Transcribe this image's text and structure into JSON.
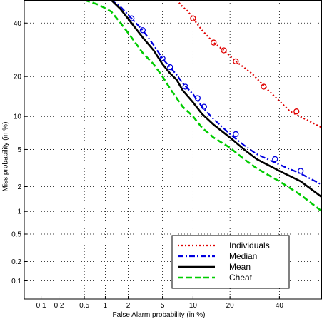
{
  "chart_data": {
    "type": "line",
    "xlabel": "False Alarm probability (in %)",
    "ylabel": "Miss probability (in %)",
    "xscale": "probit",
    "yscale": "probit",
    "xlim": [
      0.05,
      60
    ],
    "ylim": [
      0.05,
      50
    ],
    "xticks": [
      0.1,
      0.2,
      0.5,
      1,
      2,
      5,
      10,
      20,
      40
    ],
    "yticks": [
      0.1,
      0.2,
      0.5,
      1,
      2,
      5,
      10,
      20,
      40
    ],
    "xtick_labels": [
      "0.1",
      "0.2",
      "0.5",
      "1",
      "2",
      "5",
      "10",
      "20",
      "40"
    ],
    "ytick_labels": [
      "0.1",
      "0.2",
      "0.5",
      "1",
      "2",
      "5",
      "10",
      "20",
      "40"
    ],
    "grid": true,
    "legend_position": "bottom-right",
    "series": [
      {
        "name": "Individuals",
        "color": "#e00000",
        "style": "dotted",
        "marker": "circle",
        "x": [
          7,
          8,
          9,
          10,
          12,
          15,
          18,
          22,
          28,
          35,
          45,
          60
        ],
        "y": [
          50,
          47,
          45,
          42,
          37,
          32,
          29,
          25,
          21,
          16,
          11,
          8
        ],
        "marker_x": [
          10,
          15,
          18,
          22,
          33,
          48
        ],
        "marker_y": [
          42,
          32,
          29,
          25,
          17,
          11
        ]
      },
      {
        "name": "Median",
        "color": "#0000e0",
        "style": "dashdot",
        "marker": "circle",
        "x": [
          1.2,
          1.6,
          2.2,
          3,
          4,
          5,
          6,
          7,
          8,
          10,
          12,
          15,
          20,
          25,
          30,
          40,
          50,
          60
        ],
        "y": [
          50,
          47,
          42,
          37,
          31,
          26,
          23,
          20.5,
          18,
          15,
          12,
          9.5,
          7,
          5.5,
          4.5,
          3.5,
          2.8,
          2.1
        ],
        "marker_x": [
          2.2,
          3,
          5,
          6,
          8.5,
          11,
          12.5,
          22,
          38,
          50
        ],
        "marker_y": [
          42,
          37,
          26,
          23,
          17,
          14,
          12,
          7,
          4,
          3
        ]
      },
      {
        "name": "Mean",
        "color": "#000000",
        "style": "solid",
        "marker": "none",
        "x": [
          1.2,
          1.6,
          2.2,
          3,
          4,
          5,
          6,
          7,
          8,
          10,
          12,
          15,
          20,
          25,
          30,
          40,
          50,
          60
        ],
        "y": [
          50,
          46,
          40,
          34,
          29,
          24,
          21,
          19,
          16,
          13,
          10.5,
          8.5,
          6.5,
          5,
          4,
          3,
          2.3,
          1.5
        ]
      },
      {
        "name": "Cheat",
        "color": "#00cc00",
        "style": "dashed",
        "marker": "none",
        "x": [
          0.5,
          0.8,
          1.2,
          1.6,
          2.2,
          3,
          4,
          5,
          6,
          7,
          8,
          10,
          12,
          15,
          20,
          25,
          30,
          40,
          50,
          60
        ],
        "y": [
          50,
          48,
          45,
          40,
          34,
          28,
          24,
          20,
          16.5,
          14,
          12,
          10,
          8,
          6.5,
          5.2,
          4,
          3.2,
          2.3,
          1.6,
          1
        ]
      }
    ]
  }
}
